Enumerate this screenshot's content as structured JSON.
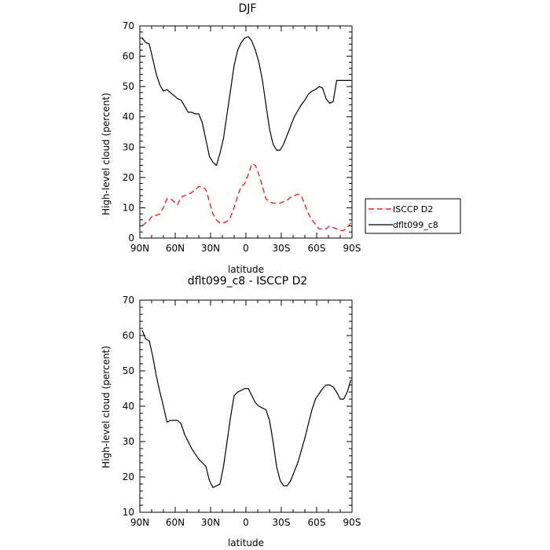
{
  "chart_data": [
    {
      "type": "line",
      "title": "DJF",
      "xlabel": "latitude",
      "ylabel": "High-level cloud (percent)",
      "xlim": [
        90,
        -90
      ],
      "ylim": [
        0,
        70
      ],
      "x_ticks": [
        90,
        60,
        30,
        0,
        -30,
        -60,
        -90
      ],
      "x_tick_labels": [
        "90N",
        "60N",
        "30N",
        "0",
        "30S",
        "60S",
        "90S"
      ],
      "y_ticks": [
        0,
        10,
        20,
        30,
        40,
        50,
        60,
        70
      ],
      "y_tick_labels": [
        "0",
        "10",
        "20",
        "30",
        "40",
        "50",
        "60",
        "70"
      ],
      "grid": false,
      "legend": "right-outside",
      "series": [
        {
          "name": "ISCCP D2",
          "color": "#e8232a",
          "dash": "dashed",
          "x": [
            88,
            85,
            82,
            79,
            76,
            73,
            70,
            67,
            64,
            61,
            58,
            55,
            52,
            49,
            46,
            43,
            40,
            37,
            34,
            31,
            28,
            25,
            22,
            19,
            16,
            13,
            10,
            7,
            4,
            1,
            -2,
            -5,
            -8,
            -11,
            -14,
            -17,
            -20,
            -23,
            -26,
            -29,
            -32,
            -35,
            -38,
            -41,
            -44,
            -47,
            -50,
            -53,
            -56,
            -59,
            -62,
            -65,
            -68,
            -71,
            -74,
            -77,
            -80,
            -83,
            -86,
            -89
          ],
          "y": [
            4,
            5,
            6,
            7.5,
            7.5,
            8,
            10,
            13,
            13,
            12,
            11,
            13.5,
            14,
            14.5,
            15,
            16,
            17,
            17,
            16,
            12,
            8,
            6,
            5,
            5,
            5.5,
            7,
            10,
            14,
            17,
            18,
            21,
            24.5,
            24,
            21,
            17,
            13,
            12,
            11.5,
            11.5,
            11.5,
            12,
            12.5,
            13.5,
            14,
            14.5,
            14,
            11,
            8,
            6,
            4.5,
            3,
            3,
            3,
            4,
            3.5,
            3,
            2.5,
            2.5,
            3.5,
            5
          ]
        },
        {
          "name": "dflt099_c8",
          "color": "#000000",
          "dash": "solid",
          "x": [
            88,
            85,
            82,
            79,
            76,
            73,
            70,
            67,
            64,
            61,
            58,
            55,
            52,
            49,
            46,
            43,
            40,
            37,
            34,
            31,
            28,
            25,
            22,
            19,
            16,
            13,
            10,
            7,
            4,
            1,
            -2,
            -5,
            -8,
            -11,
            -14,
            -17,
            -20,
            -23,
            -26,
            -29,
            -32,
            -35,
            -38,
            -41,
            -44,
            -47,
            -50,
            -53,
            -56,
            -59,
            -62,
            -65,
            -68,
            -71,
            -74,
            -77,
            -80,
            -83,
            -86,
            -89
          ],
          "y": [
            66,
            64.5,
            64,
            59,
            54,
            50.5,
            48.5,
            49,
            48,
            47,
            46,
            45.5,
            43.5,
            41.5,
            41.5,
            41,
            41,
            38,
            32.5,
            27,
            25,
            24,
            28,
            33,
            41,
            49,
            57,
            62,
            64.5,
            66,
            66.5,
            65,
            62,
            58,
            52,
            44,
            36,
            31,
            29,
            29,
            31,
            34,
            37,
            40,
            42,
            44,
            45.5,
            47.5,
            48.5,
            49,
            50,
            49.5,
            46,
            44.5,
            45,
            52,
            52,
            52,
            52,
            52
          ]
        }
      ]
    },
    {
      "type": "line",
      "title": "dflt099_c8 - ISCCP D2",
      "xlabel": "latitude",
      "ylabel": "High-level cloud (percent)",
      "xlim": [
        90,
        -90
      ],
      "ylim": [
        10,
        70
      ],
      "x_ticks": [
        90,
        60,
        30,
        0,
        -30,
        -60,
        -90
      ],
      "x_tick_labels": [
        "90N",
        "60N",
        "30N",
        "0",
        "30S",
        "60S",
        "90S"
      ],
      "y_ticks": [
        10,
        20,
        30,
        40,
        50,
        60,
        70
      ],
      "y_tick_labels": [
        "10",
        "20",
        "30",
        "40",
        "50",
        "60",
        "70"
      ],
      "grid": false,
      "series": [
        {
          "color": "#000000",
          "dash": "solid",
          "x": [
            88,
            85,
            82,
            79,
            76,
            73,
            70,
            67,
            64,
            61,
            58,
            55,
            52,
            49,
            46,
            43,
            40,
            37,
            34,
            31,
            28,
            25,
            22,
            19,
            16,
            13,
            10,
            7,
            4,
            1,
            -2,
            -5,
            -8,
            -11,
            -14,
            -17,
            -20,
            -23,
            -26,
            -29,
            -32,
            -35,
            -38,
            -41,
            -44,
            -47,
            -50,
            -53,
            -56,
            -59,
            -62,
            -65,
            -68,
            -71,
            -74,
            -77,
            -80,
            -83,
            -86,
            -89
          ],
          "y": [
            61.5,
            59,
            58.5,
            54,
            48.5,
            44,
            40,
            35.5,
            36,
            36,
            36,
            35,
            32,
            30,
            28,
            26.5,
            25,
            24,
            23,
            19,
            17,
            17.5,
            18,
            23,
            30,
            37,
            43,
            44,
            44.5,
            45,
            45,
            43,
            41,
            40,
            39.5,
            39,
            36,
            30,
            23,
            19,
            17.5,
            17.5,
            19,
            21.5,
            24,
            27.5,
            31,
            35,
            39,
            42,
            43.5,
            45,
            46,
            46,
            45.5,
            44,
            42,
            42,
            44,
            47.5
          ]
        }
      ]
    }
  ]
}
